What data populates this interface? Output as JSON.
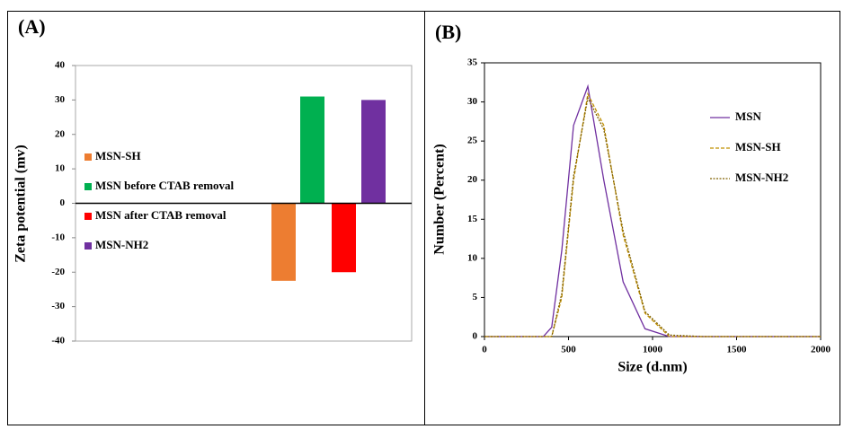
{
  "chart_data": [
    {
      "type": "bar",
      "title": "(A)",
      "y_label": "Zeta potential (mv)",
      "categories": [
        null
      ],
      "series": [
        {
          "name": "MSN-SH",
          "color": "#ed7d31",
          "values": [
            -22.5
          ]
        },
        {
          "name": "MSN before CTAB removal",
          "color": "#00b050",
          "values": [
            31
          ]
        },
        {
          "name": "MSN after CTAB removal",
          "color": "#ff0000",
          "values": [
            -20
          ]
        },
        {
          "name": "MSN-NH2",
          "color": "#7030a0",
          "values": [
            30
          ]
        }
      ],
      "ylim": [
        -40,
        40
      ],
      "yticks": [
        -40,
        -30,
        -20,
        -10,
        0,
        10,
        20,
        30,
        40
      ],
      "legend": "left"
    },
    {
      "type": "line",
      "title": "(B)",
      "x_label": "Size (d.nm)",
      "y_label": "Number (Percent)",
      "x": [
        0,
        100,
        200,
        300,
        350,
        400,
        460,
        530,
        615,
        710,
        825,
        955,
        1100,
        1300,
        1500,
        1700,
        2000
      ],
      "series": [
        {
          "name": "MSN",
          "color": "#7030a0",
          "dash": "solid",
          "values": [
            0,
            0,
            0,
            0,
            0,
            1.2,
            11,
            27,
            32,
            20,
            7,
            1,
            0,
            0,
            0,
            0,
            0
          ]
        },
        {
          "name": "MSN-SH",
          "color": "#c09000",
          "dash": "dashed",
          "values": [
            0,
            0,
            0,
            0,
            0,
            0,
            5,
            20,
            31,
            27,
            13,
            3,
            0,
            0,
            0,
            0,
            0
          ]
        },
        {
          "name": "MSN-NH2",
          "color": "#806000",
          "dash": "dotted",
          "values": [
            0,
            0,
            0,
            0,
            0,
            0,
            5.5,
            20.5,
            30.5,
            26.5,
            13.5,
            3.2,
            0.2,
            0,
            0,
            0,
            0
          ]
        }
      ],
      "xlim": [
        0,
        2000
      ],
      "xticks": [
        0,
        500,
        1000,
        1500,
        2000
      ],
      "ylim": [
        0,
        35
      ],
      "yticks": [
        0,
        5,
        10,
        15,
        20,
        25,
        30,
        35
      ],
      "legend": "right"
    }
  ]
}
